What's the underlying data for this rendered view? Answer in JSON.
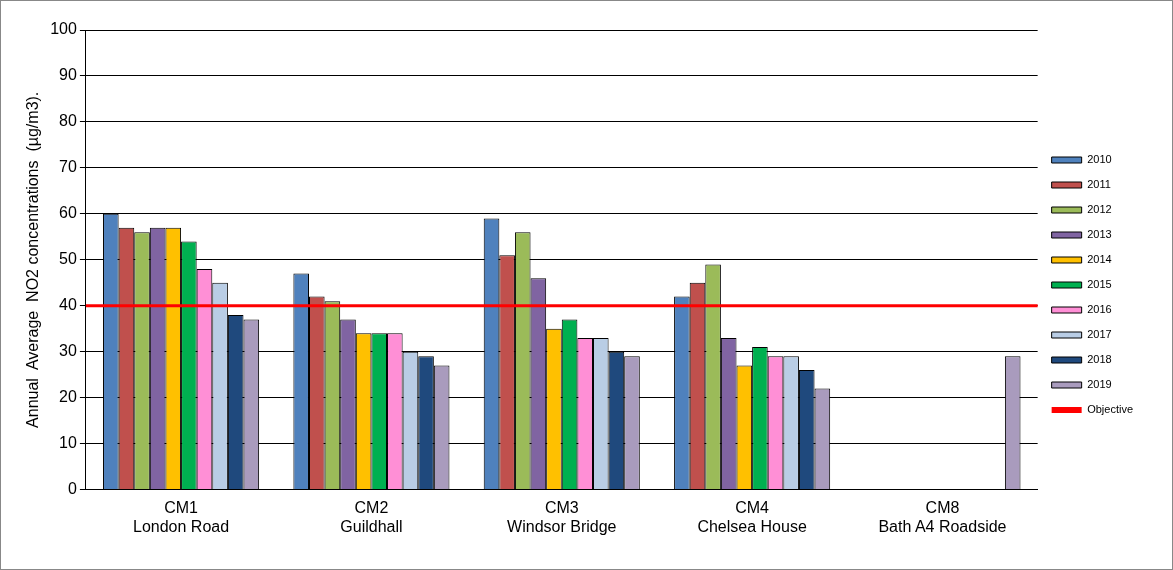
{
  "chart_data": {
    "type": "bar",
    "ylabel": "Annual  Average  NO2 concentrations  (µg/m3).",
    "categories": [
      "CM1\nLondon Road",
      "CM2\nGuildhall",
      "CM3\nWindsor Bridge",
      "CM4\nChelsea House",
      "CM8\nBath A4 Roadside"
    ],
    "series": [
      {
        "name": "2010",
        "color": "#4f81bd",
        "values": [
          60,
          47,
          59,
          42,
          null
        ]
      },
      {
        "name": "2011",
        "color": "#c0504d",
        "values": [
          57,
          42,
          51,
          45,
          null
        ]
      },
      {
        "name": "2012",
        "color": "#9bbb59",
        "values": [
          56,
          41,
          56,
          49,
          null
        ]
      },
      {
        "name": "2013",
        "color": "#8064a2",
        "values": [
          57,
          37,
          46,
          33,
          null
        ]
      },
      {
        "name": "2014",
        "color": "#ffc000",
        "values": [
          57,
          34,
          35,
          27,
          null
        ]
      },
      {
        "name": "2015",
        "color": "#00b050",
        "values": [
          54,
          34,
          37,
          31,
          null
        ]
      },
      {
        "name": "2016",
        "color": "#ff8fd6",
        "values": [
          48,
          34,
          33,
          29,
          null
        ]
      },
      {
        "name": "2017",
        "color": "#b9cde5",
        "values": [
          45,
          30,
          33,
          29,
          null
        ]
      },
      {
        "name": "2018",
        "color": "#1f497d",
        "values": [
          38,
          29,
          30,
          26,
          null
        ]
      },
      {
        "name": "2019",
        "color": "#a99bbd",
        "values": [
          37,
          27,
          29,
          22,
          29
        ]
      }
    ],
    "ylim": [
      0,
      100
    ],
    "yticks": [
      0,
      10,
      20,
      30,
      40,
      50,
      60,
      70,
      80,
      90,
      100
    ],
    "ref_lines": [
      {
        "axis": "y",
        "value": 40,
        "label": "Objective",
        "color": "#ff0000"
      }
    ],
    "grid": "y",
    "legend": "right"
  }
}
